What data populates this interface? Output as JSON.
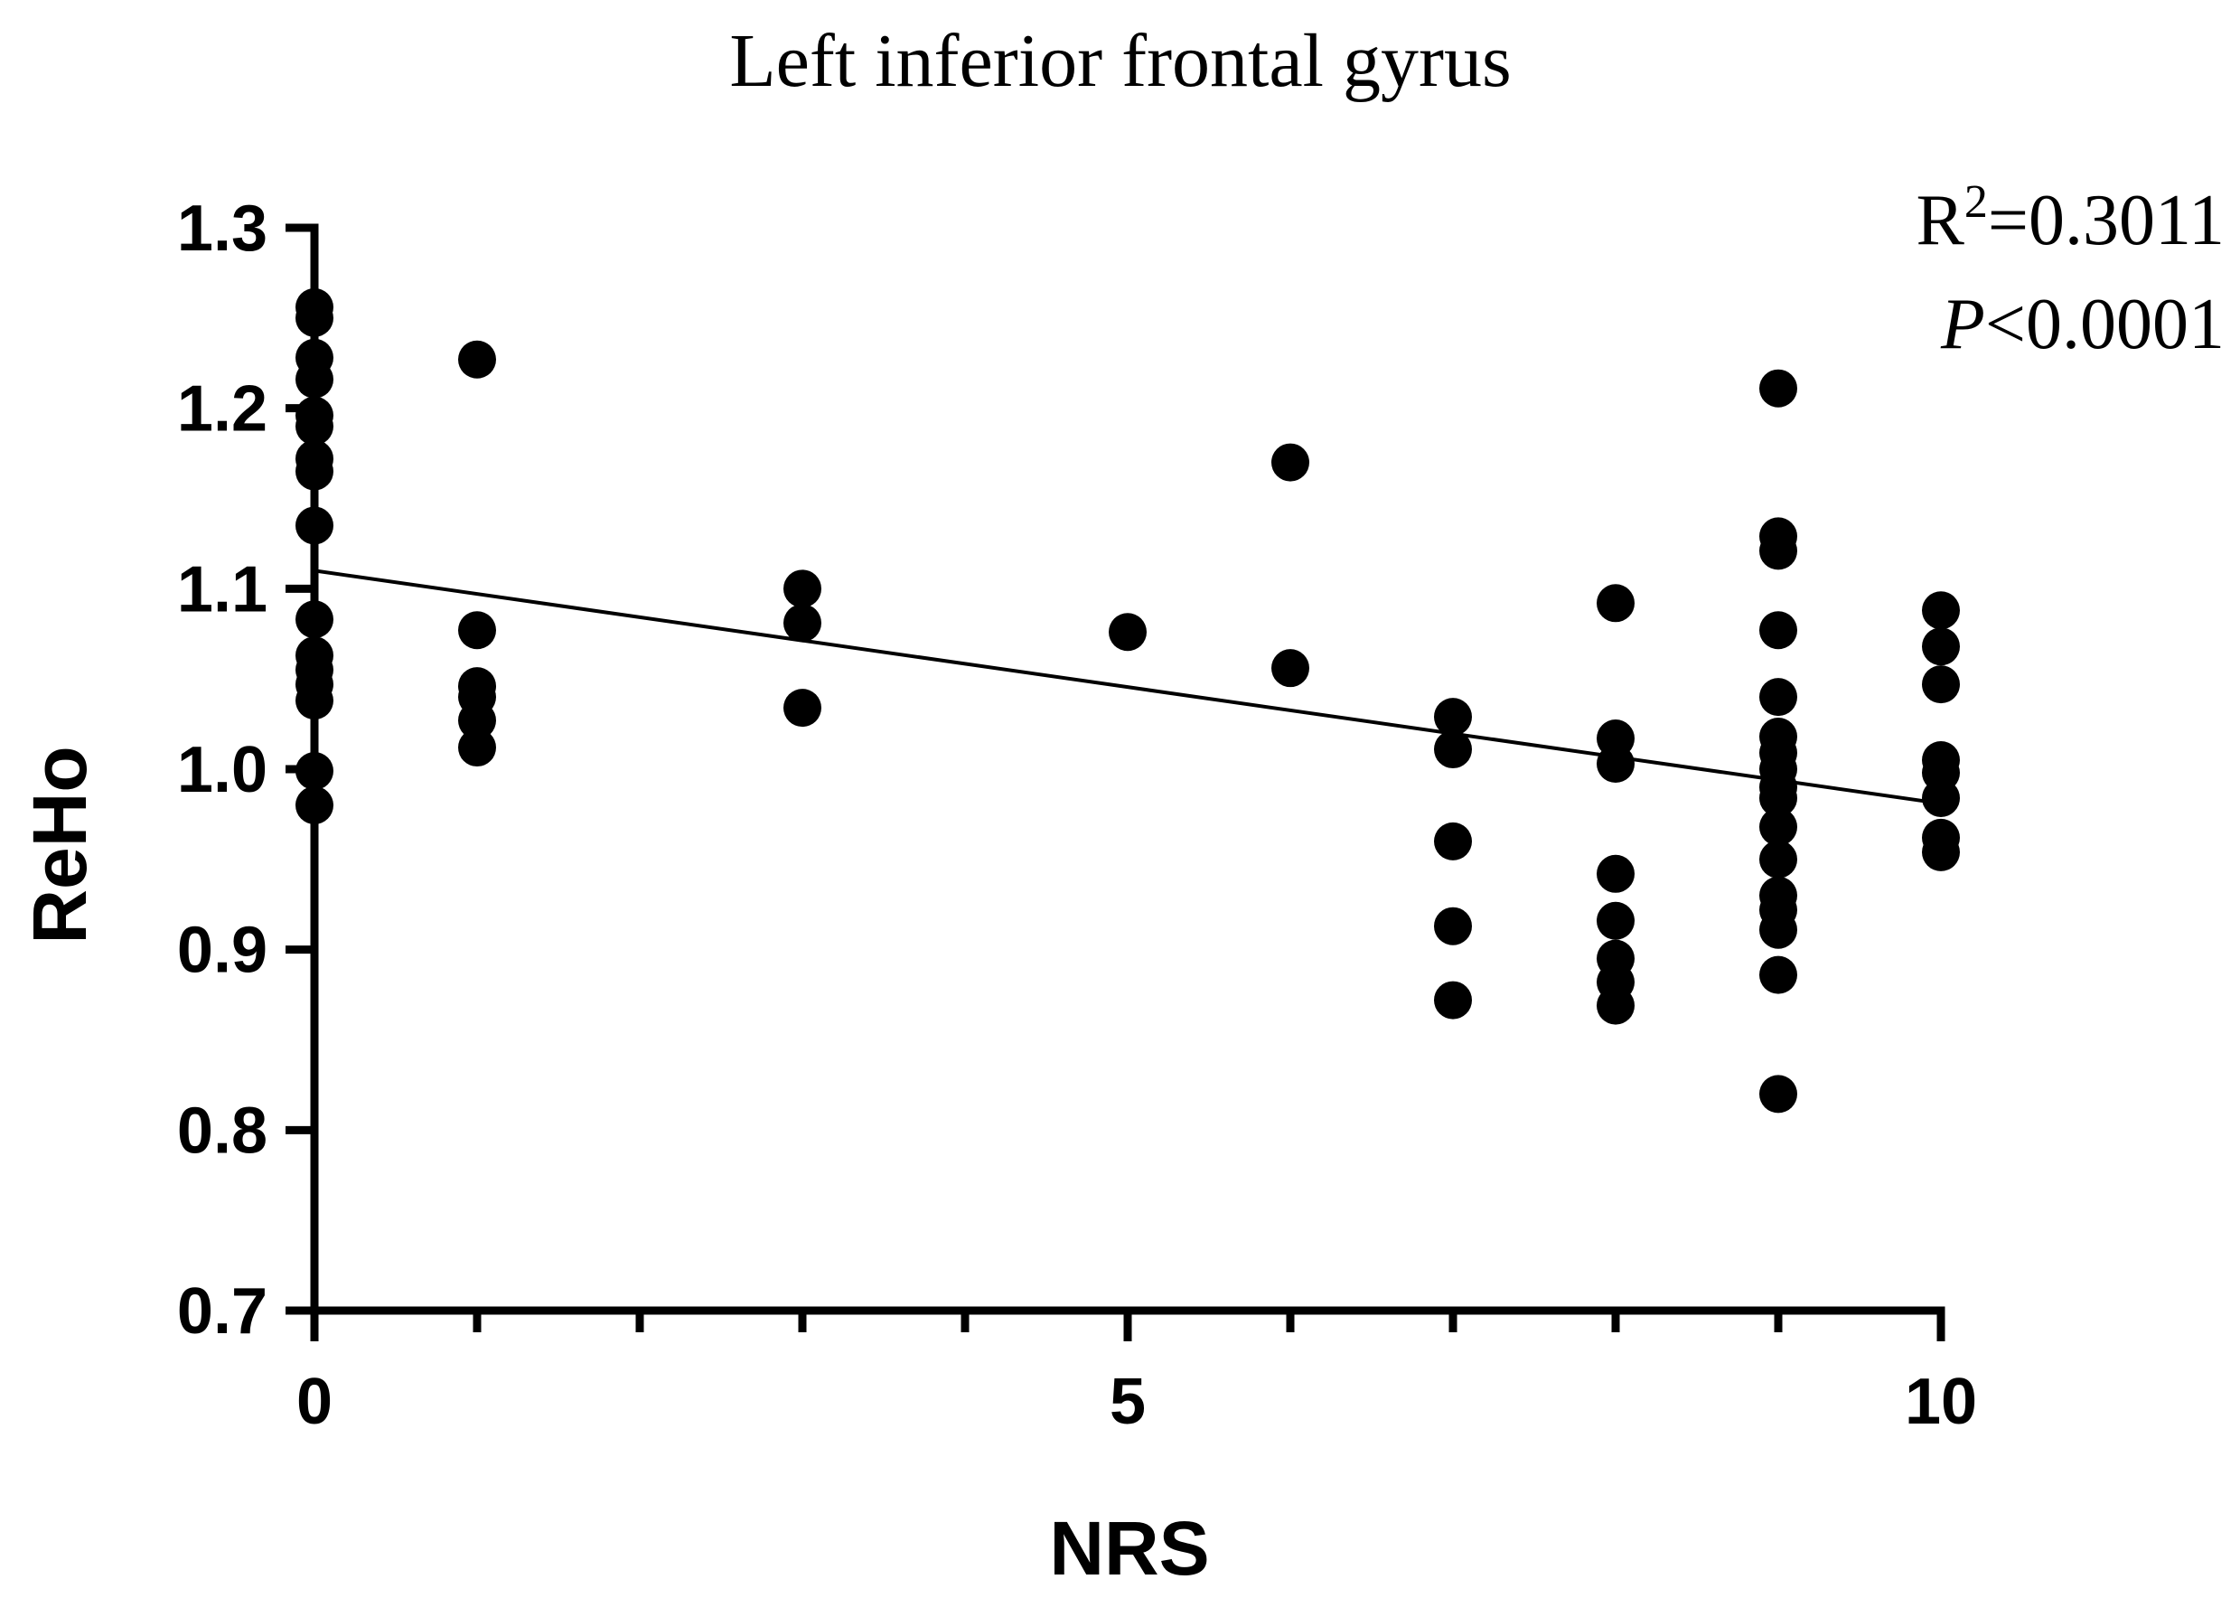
{
  "chart_data": {
    "type": "scatter",
    "title": "Left inferior frontal gyrus",
    "xlabel": "NRS",
    "ylabel": "ReHo",
    "xlim": [
      0,
      10
    ],
    "ylim": [
      0.7,
      1.3
    ],
    "xticks": [
      0,
      5,
      10
    ],
    "xticks_minor_step": 1,
    "yticks": [
      0.7,
      0.8,
      0.9,
      1.0,
      1.1,
      1.2,
      1.3
    ],
    "ytick_labels": [
      "0.7",
      "0.8",
      "0.9",
      "1.0",
      "1.1",
      "1.2",
      "1.3"
    ],
    "xtick_labels": [
      "0",
      "5",
      "10"
    ],
    "grid": false,
    "marker_color": "#000000",
    "points": [
      {
        "x": 0,
        "y": 1.256
      },
      {
        "x": 0,
        "y": 1.25
      },
      {
        "x": 0,
        "y": 1.228
      },
      {
        "x": 0,
        "y": 1.216
      },
      {
        "x": 0,
        "y": 1.196
      },
      {
        "x": 0,
        "y": 1.19
      },
      {
        "x": 0,
        "y": 1.172
      },
      {
        "x": 0,
        "y": 1.165
      },
      {
        "x": 0,
        "y": 1.135
      },
      {
        "x": 0,
        "y": 1.083
      },
      {
        "x": 0,
        "y": 1.063
      },
      {
        "x": 0,
        "y": 1.055
      },
      {
        "x": 0,
        "y": 1.047
      },
      {
        "x": 0,
        "y": 1.038
      },
      {
        "x": 0,
        "y": 0.999
      },
      {
        "x": 0,
        "y": 0.98
      },
      {
        "x": 1,
        "y": 1.227
      },
      {
        "x": 1,
        "y": 1.077
      },
      {
        "x": 1,
        "y": 1.046
      },
      {
        "x": 1,
        "y": 1.04
      },
      {
        "x": 1,
        "y": 1.027
      },
      {
        "x": 1,
        "y": 1.012
      },
      {
        "x": 3,
        "y": 1.1
      },
      {
        "x": 3,
        "y": 1.081
      },
      {
        "x": 3,
        "y": 1.034
      },
      {
        "x": 5,
        "y": 1.076
      },
      {
        "x": 6,
        "y": 1.17
      },
      {
        "x": 6,
        "y": 1.056
      },
      {
        "x": 7,
        "y": 1.029
      },
      {
        "x": 7,
        "y": 1.011
      },
      {
        "x": 7,
        "y": 0.96
      },
      {
        "x": 7,
        "y": 0.913
      },
      {
        "x": 7,
        "y": 0.872
      },
      {
        "x": 8,
        "y": 1.092
      },
      {
        "x": 8,
        "y": 1.017
      },
      {
        "x": 8,
        "y": 1.003
      },
      {
        "x": 8,
        "y": 0.942
      },
      {
        "x": 8,
        "y": 0.916
      },
      {
        "x": 8,
        "y": 0.895
      },
      {
        "x": 8,
        "y": 0.882
      },
      {
        "x": 8,
        "y": 0.869
      },
      {
        "x": 9,
        "y": 1.211
      },
      {
        "x": 9,
        "y": 1.129
      },
      {
        "x": 9,
        "y": 1.121
      },
      {
        "x": 9,
        "y": 1.077
      },
      {
        "x": 9,
        "y": 1.04
      },
      {
        "x": 9,
        "y": 1.018
      },
      {
        "x": 9,
        "y": 1.009
      },
      {
        "x": 9,
        "y": 1.0
      },
      {
        "x": 9,
        "y": 0.99
      },
      {
        "x": 9,
        "y": 0.984
      },
      {
        "x": 9,
        "y": 0.968
      },
      {
        "x": 9,
        "y": 0.95
      },
      {
        "x": 9,
        "y": 0.93
      },
      {
        "x": 9,
        "y": 0.922
      },
      {
        "x": 9,
        "y": 0.911
      },
      {
        "x": 9,
        "y": 0.886
      },
      {
        "x": 9,
        "y": 0.82
      },
      {
        "x": 10,
        "y": 1.088
      },
      {
        "x": 10,
        "y": 1.068
      },
      {
        "x": 10,
        "y": 1.047
      },
      {
        "x": 10,
        "y": 1.005
      },
      {
        "x": 10,
        "y": 0.998
      },
      {
        "x": 10,
        "y": 0.984
      },
      {
        "x": 10,
        "y": 0.962
      },
      {
        "x": 10,
        "y": 0.954
      }
    ],
    "regression_line": {
      "x": [
        0,
        10
      ],
      "y": [
        1.11,
        0.981
      ]
    },
    "annotations": {
      "r_squared_prefix": "R",
      "r_squared_sup": "2",
      "r_squared_value": "=0.3011",
      "p_symbol": "P",
      "p_value": "<0.0001"
    }
  }
}
